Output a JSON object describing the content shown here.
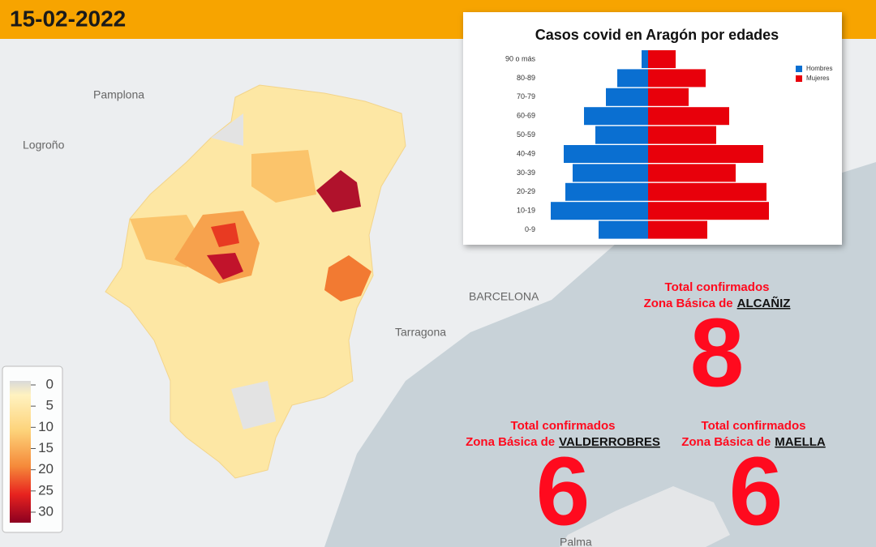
{
  "header": {
    "date": "15-02-2022"
  },
  "map": {
    "places": [
      "Pamplona",
      "Logroño",
      "BARCELONA",
      "Tarragona",
      "Palma"
    ],
    "legend": {
      "ticks": [
        0,
        5,
        10,
        15,
        20,
        25,
        30
      ]
    }
  },
  "chart_data": {
    "type": "pyramid",
    "title": "Casos covid en Aragón por edades",
    "categories": [
      "90 o más",
      "80-89",
      "70-79",
      "60-69",
      "50-59",
      "40-49",
      "30-39",
      "20-29",
      "10-19",
      "0-9"
    ],
    "xlim": [
      -150,
      150
    ],
    "legend": "top-right",
    "series": [
      {
        "name": "Hombres",
        "color": "#0a6fd1",
        "values": [
          8,
          38,
          52,
          79,
          65,
          104,
          93,
          102,
          120,
          61
        ]
      },
      {
        "name": "Mujeres",
        "color": "#e8000b",
        "values": [
          34,
          71,
          50,
          100,
          84,
          142,
          108,
          146,
          149,
          73
        ]
      }
    ]
  },
  "totals": [
    {
      "heading": "Total confirmados",
      "prefix": "Zona Básica de",
      "zone": "ALCAÑIZ",
      "value": 8
    },
    {
      "heading": "Total confirmados",
      "prefix": "Zona Básica de",
      "zone": "VALDERROBRES",
      "value": 6
    },
    {
      "heading": "Total confirmados",
      "prefix": "Zona Básica de",
      "zone": "MAELLA",
      "value": 6
    }
  ]
}
